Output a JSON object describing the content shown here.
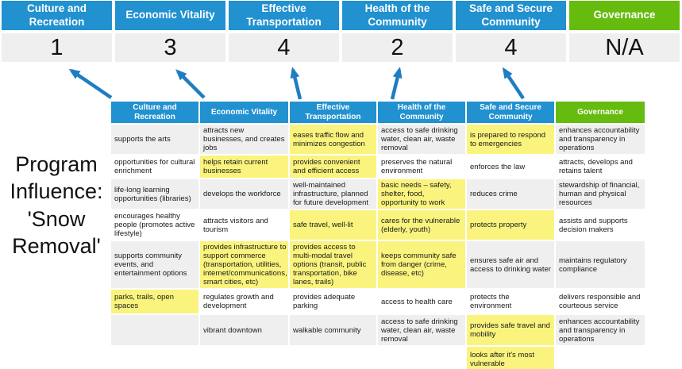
{
  "theme": {
    "header_blue": "#2191D0",
    "governance_green": "#66BB0F",
    "highlight_yellow": "#FAF47E",
    "row_gray": "#EFEFEF",
    "row_white": "#FFFFFF",
    "arrow_blue": "#1E7EC1",
    "text_dark": "#1A1A1A"
  },
  "program_title": {
    "text": "Program Influence: 'Snow Removal'"
  },
  "scoreboard": {
    "columns": [
      {
        "label": "Culture and Recreation",
        "score": "1",
        "theme": "blue"
      },
      {
        "label": "Economic Vitality",
        "score": "3",
        "theme": "blue"
      },
      {
        "label": "Effective Transportation",
        "score": "4",
        "theme": "blue"
      },
      {
        "label": "Health of the Community",
        "score": "2",
        "theme": "blue"
      },
      {
        "label": "Safe and Secure Community",
        "score": "4",
        "theme": "blue"
      },
      {
        "label": "Governance",
        "score": "N/A",
        "theme": "green"
      }
    ]
  },
  "matrix": {
    "headers": [
      "Culture and Recreation",
      "Economic Vitality",
      "Effective Transportation",
      "Health of the Community",
      "Safe and Secure Community",
      "Governance"
    ],
    "rows": [
      [
        {
          "t": "supports the arts",
          "h": false
        },
        {
          "t": "attracts new businesses, and creates jobs",
          "h": false
        },
        {
          "t": "eases traffic flow and minimizes congestion",
          "h": true
        },
        {
          "t": "access to safe drinking water, clean air, waste removal",
          "h": false
        },
        {
          "t": "is prepared to respond to emergencies",
          "h": true
        },
        {
          "t": "enhances accountability and transparency in operations",
          "h": false
        }
      ],
      [
        {
          "t": "opportunities for cultural enrichment",
          "h": false
        },
        {
          "t": "helps retain current businesses",
          "h": true
        },
        {
          "t": "provides convenient and efficient access",
          "h": true
        },
        {
          "t": "preserves the natural environment",
          "h": false
        },
        {
          "t": "enforces the law",
          "h": false
        },
        {
          "t": "attracts, develops and retains talent",
          "h": false
        }
      ],
      [
        {
          "t": "life-long learning opportunities (libraries)",
          "h": false
        },
        {
          "t": "develops the workforce",
          "h": false
        },
        {
          "t": "well-maintained infrastructure, planned for future development",
          "h": false
        },
        {
          "t": "basic needs – safety, shelter, food, opportunity to work",
          "h": true
        },
        {
          "t": "reduces crime",
          "h": false
        },
        {
          "t": "stewardship of financial, human and physical resources",
          "h": false
        }
      ],
      [
        {
          "t": "encourages healthy people (promotes active lifestyle)",
          "h": false
        },
        {
          "t": "attracts visitors and tourism",
          "h": false
        },
        {
          "t": "safe travel, well-lit",
          "h": true
        },
        {
          "t": "cares for the vulnerable (elderly, youth)",
          "h": true
        },
        {
          "t": "protects property",
          "h": true
        },
        {
          "t": "assists and supports decision makers",
          "h": false
        }
      ],
      [
        {
          "t": "supports community events, and entertainment options",
          "h": false
        },
        {
          "t": "provides infrastructure to support commerce (transportation, utilities, internet/communications, smart cities, etc)",
          "h": true
        },
        {
          "t": "provides access to multi-modal travel options (transit, public transportation, bike lanes, trails)",
          "h": true
        },
        {
          "t": "keeps community safe from danger (crime, disease, etc)",
          "h": true
        },
        {
          "t": "ensures safe air and access to drinking water",
          "h": false
        },
        {
          "t": "maintains regulatory compliance",
          "h": false
        }
      ],
      [
        {
          "t": "parks, trails, open spaces",
          "h": true
        },
        {
          "t": "regulates growth and development",
          "h": false
        },
        {
          "t": "provides adequate parking",
          "h": false
        },
        {
          "t": "access to health care",
          "h": false
        },
        {
          "t": "protects the environment",
          "h": false
        },
        {
          "t": "delivers responsible and courteous service",
          "h": false
        }
      ],
      [
        {
          "t": "",
          "h": false
        },
        {
          "t": "vibrant downtown",
          "h": false
        },
        {
          "t": "walkable community",
          "h": false
        },
        {
          "t": "access to safe drinking water, clean air, waste removal",
          "h": false
        },
        {
          "t": "provides safe travel and mobility",
          "h": true
        },
        {
          "t": "enhances accountability and transparency in operations",
          "h": false
        }
      ],
      [
        {
          "t": "",
          "h": false
        },
        {
          "t": "",
          "h": false
        },
        {
          "t": "",
          "h": false
        },
        {
          "t": "",
          "h": false
        },
        {
          "t": "looks after it's most vulnerable",
          "h": true
        },
        {
          "t": "",
          "h": false
        }
      ]
    ]
  }
}
